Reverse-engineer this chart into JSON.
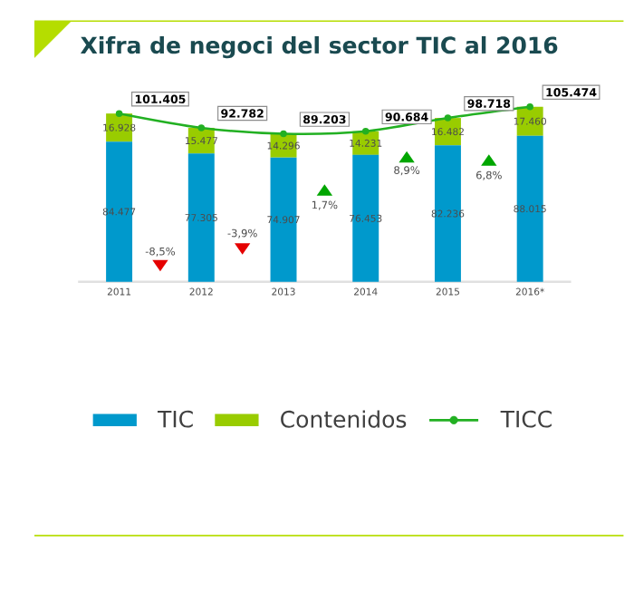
{
  "chart_data": {
    "type": "bar",
    "title": "Xifra de negoci del sector TIC al 2016",
    "categories": [
      "2011",
      "2012",
      "2013",
      "2014",
      "2015",
      "2016*"
    ],
    "series": [
      {
        "name": "TIC",
        "color": "#0099cc",
        "values": [
          84477,
          77305,
          74907,
          76453,
          82236,
          88015
        ],
        "value_labels": [
          "84.477",
          "77.305",
          "74.907",
          "76.453",
          "82.236",
          "88.015"
        ]
      },
      {
        "name": "Contenidos",
        "color": "#99cc00",
        "values": [
          16928,
          15477,
          14296,
          14231,
          16482,
          17460
        ],
        "value_labels": [
          "16.928",
          "15.477",
          "14.296",
          "14.231",
          "16.482",
          "17.460"
        ]
      },
      {
        "name": "TICC",
        "type": "line",
        "color": "#22b022",
        "values": [
          101405,
          92782,
          89203,
          90684,
          98718,
          105474
        ],
        "value_labels": [
          "101.405",
          "92.782",
          "89.203",
          "90.684",
          "98.718",
          "105.474"
        ]
      }
    ],
    "stacked": true,
    "legend": "bottom",
    "marker": "circle",
    "line_style": "solid",
    "annotations": [
      "-8,5%",
      "-3,9%",
      "1,7%",
      "8,9%",
      "6,8%"
    ]
  }
}
